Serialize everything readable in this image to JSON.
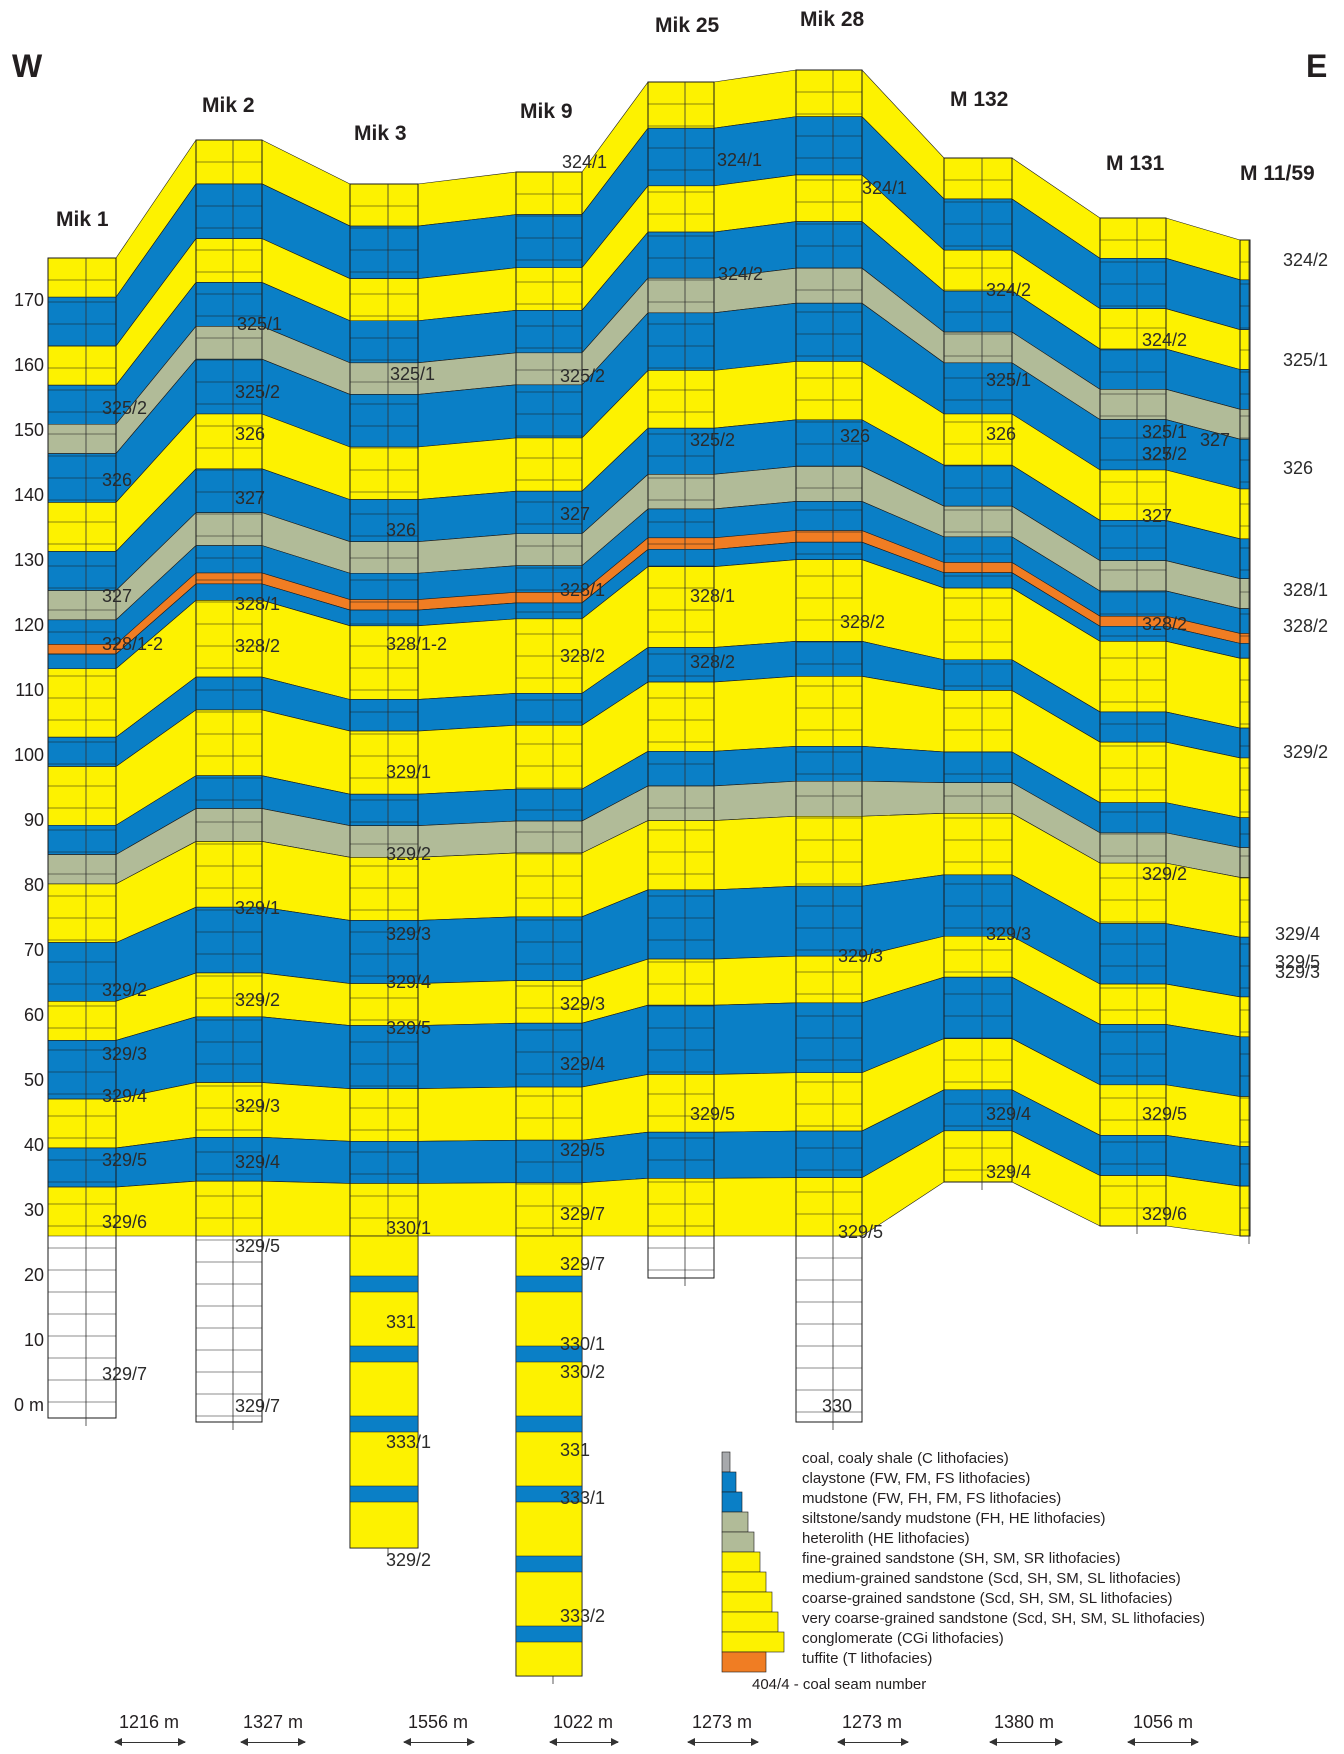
{
  "directions": {
    "west": "W",
    "east": "E"
  },
  "wells": [
    {
      "id": "mik1",
      "name": "Mik 1"
    },
    {
      "id": "mik2",
      "name": "Mik 2"
    },
    {
      "id": "mik3",
      "name": "Mik 3"
    },
    {
      "id": "mik9",
      "name": "Mik 9"
    },
    {
      "id": "mik25",
      "name": "Mik 25"
    },
    {
      "id": "mik28",
      "name": "Mik 28"
    },
    {
      "id": "m132",
      "name": "M 132"
    },
    {
      "id": "m131",
      "name": "M 131"
    },
    {
      "id": "m1159",
      "name": "M 11/59"
    }
  ],
  "depth_axis": {
    "unit": "m",
    "ticks": [
      "0 m",
      "10",
      "20",
      "30",
      "40",
      "50",
      "60",
      "70",
      "80",
      "90",
      "100",
      "110",
      "120",
      "130",
      "140",
      "150",
      "160",
      "170"
    ]
  },
  "seam_labels": [
    "324/1",
    "324/1",
    "324/1",
    "324/2",
    "324/2",
    "324/2",
    "324/2",
    "325/1",
    "325/1",
    "325/2",
    "325/1",
    "325/1",
    "325/2",
    "325/2",
    "325/2",
    "325/1",
    "325/2",
    "326",
    "326",
    "326",
    "326",
    "326",
    "326",
    "327",
    "327",
    "327",
    "327",
    "327",
    "327",
    "328/1",
    "328/1",
    "328/1",
    "328/1",
    "328/2",
    "328/2",
    "328/2",
    "328/2",
    "328/2",
    "328/2",
    "328/1-2",
    "328/1-2",
    "329/1",
    "329/1",
    "329/2",
    "329/2",
    "329/2",
    "329/2",
    "329/2",
    "329/3",
    "329/3",
    "329/3",
    "329/3",
    "329/3",
    "329/3",
    "329/4",
    "329/4",
    "329/4",
    "329/4",
    "329/4",
    "329/4",
    "329/5",
    "329/5",
    "329/5",
    "329/5",
    "329/5",
    "329/5",
    "329/5",
    "329/6",
    "329/6",
    "329/7",
    "329/7",
    "329/7",
    "329/7",
    "330",
    "330/1",
    "330/1",
    "330/2",
    "331",
    "331",
    "333/1",
    "333/1",
    "333/2",
    "329/2",
    "329/3",
    "329/4",
    "329/5"
  ],
  "legend": {
    "items": [
      {
        "label": "coal, coaly shale (C lithofacies)",
        "color": "#a7a9ac"
      },
      {
        "label": "claystone (FW, FM, FS lithofacies)",
        "color": "#0a7fc6"
      },
      {
        "label": "mudstone (FW, FH, FM, FS lithofacies)",
        "color": "#0a7fc6"
      },
      {
        "label": "siltstone/sandy mudstone (FH, HE lithofacies)",
        "color": "#b1bb98"
      },
      {
        "label": "heterolith (HE lithofacies)",
        "color": "#b1bb98"
      },
      {
        "label": "fine-grained sandstone (SH, SM, SR lithofacies)",
        "color": "#fdf200"
      },
      {
        "label": "medium-grained sandstone (Scd, SH, SM, SL lithofacies)",
        "color": "#fdf200"
      },
      {
        "label": "coarse-grained sandstone (Scd, SH, SM, SL lithofacies)",
        "color": "#fdf200"
      },
      {
        "label": "very coarse-grained sandstone (Scd, SH, SM, SL lithofacies)",
        "color": "#fdf200"
      },
      {
        "label": "conglomerate (CGi lithofacies)",
        "color": "#fdf200"
      },
      {
        "label": "tuffite (T lithofacies)",
        "color": "#f07d23"
      }
    ],
    "note": "404/4 - coal seam number"
  },
  "distances": [
    "1216 m",
    "1327 m",
    "1556 m",
    "1022 m",
    "1273 m",
    "1273 m",
    "1380 m",
    "1056 m"
  ],
  "colors": {
    "sandstone": "#fdf200",
    "mudstone": "#0a7fc6",
    "siltstone": "#b1bb98",
    "coal": "#a7a9ac",
    "tuffite": "#f07d23"
  }
}
